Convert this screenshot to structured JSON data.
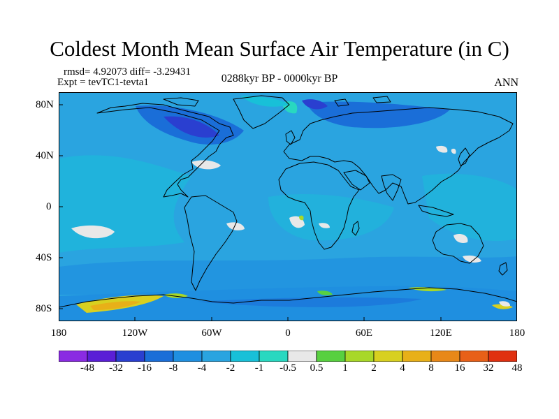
{
  "header": {
    "title": "Coldest Month Mean Surface Air Temperature (in C)",
    "stats": "rmsd= 4.92073 diff= -3.29431",
    "expt": "Expt = tevTC1-tevta1",
    "period": "0288kyr BP - 0000kyr BP",
    "season": "ANN"
  },
  "map": {
    "projection": "cylindrical-equidistant",
    "lon_range": [
      -180,
      180
    ],
    "lat_range": [
      -90,
      90
    ],
    "background_color": "#2aa4e0",
    "lat_labels": [
      "80N",
      "40N",
      "0",
      "40S",
      "80S"
    ],
    "lon_labels": [
      "180",
      "120W",
      "60W",
      "0",
      "60E",
      "120E",
      "180"
    ]
  },
  "colorbar": {
    "labels": [
      "-48",
      "-32",
      "-16",
      "-8",
      "-4",
      "-2",
      "-1",
      "-0.5",
      "0.5",
      "1",
      "2",
      "4",
      "8",
      "16",
      "32",
      "48"
    ],
    "colors": [
      "#8a2be2",
      "#5a1fd6",
      "#2a3fd0",
      "#1a6ed8",
      "#1f8fe0",
      "#2aa4e0",
      "#18c0d8",
      "#28d8c0",
      "#e8e8e8",
      "#58d040",
      "#a8d828",
      "#d8d020",
      "#e8b018",
      "#e88818",
      "#e86018",
      "#e03010"
    ]
  }
}
